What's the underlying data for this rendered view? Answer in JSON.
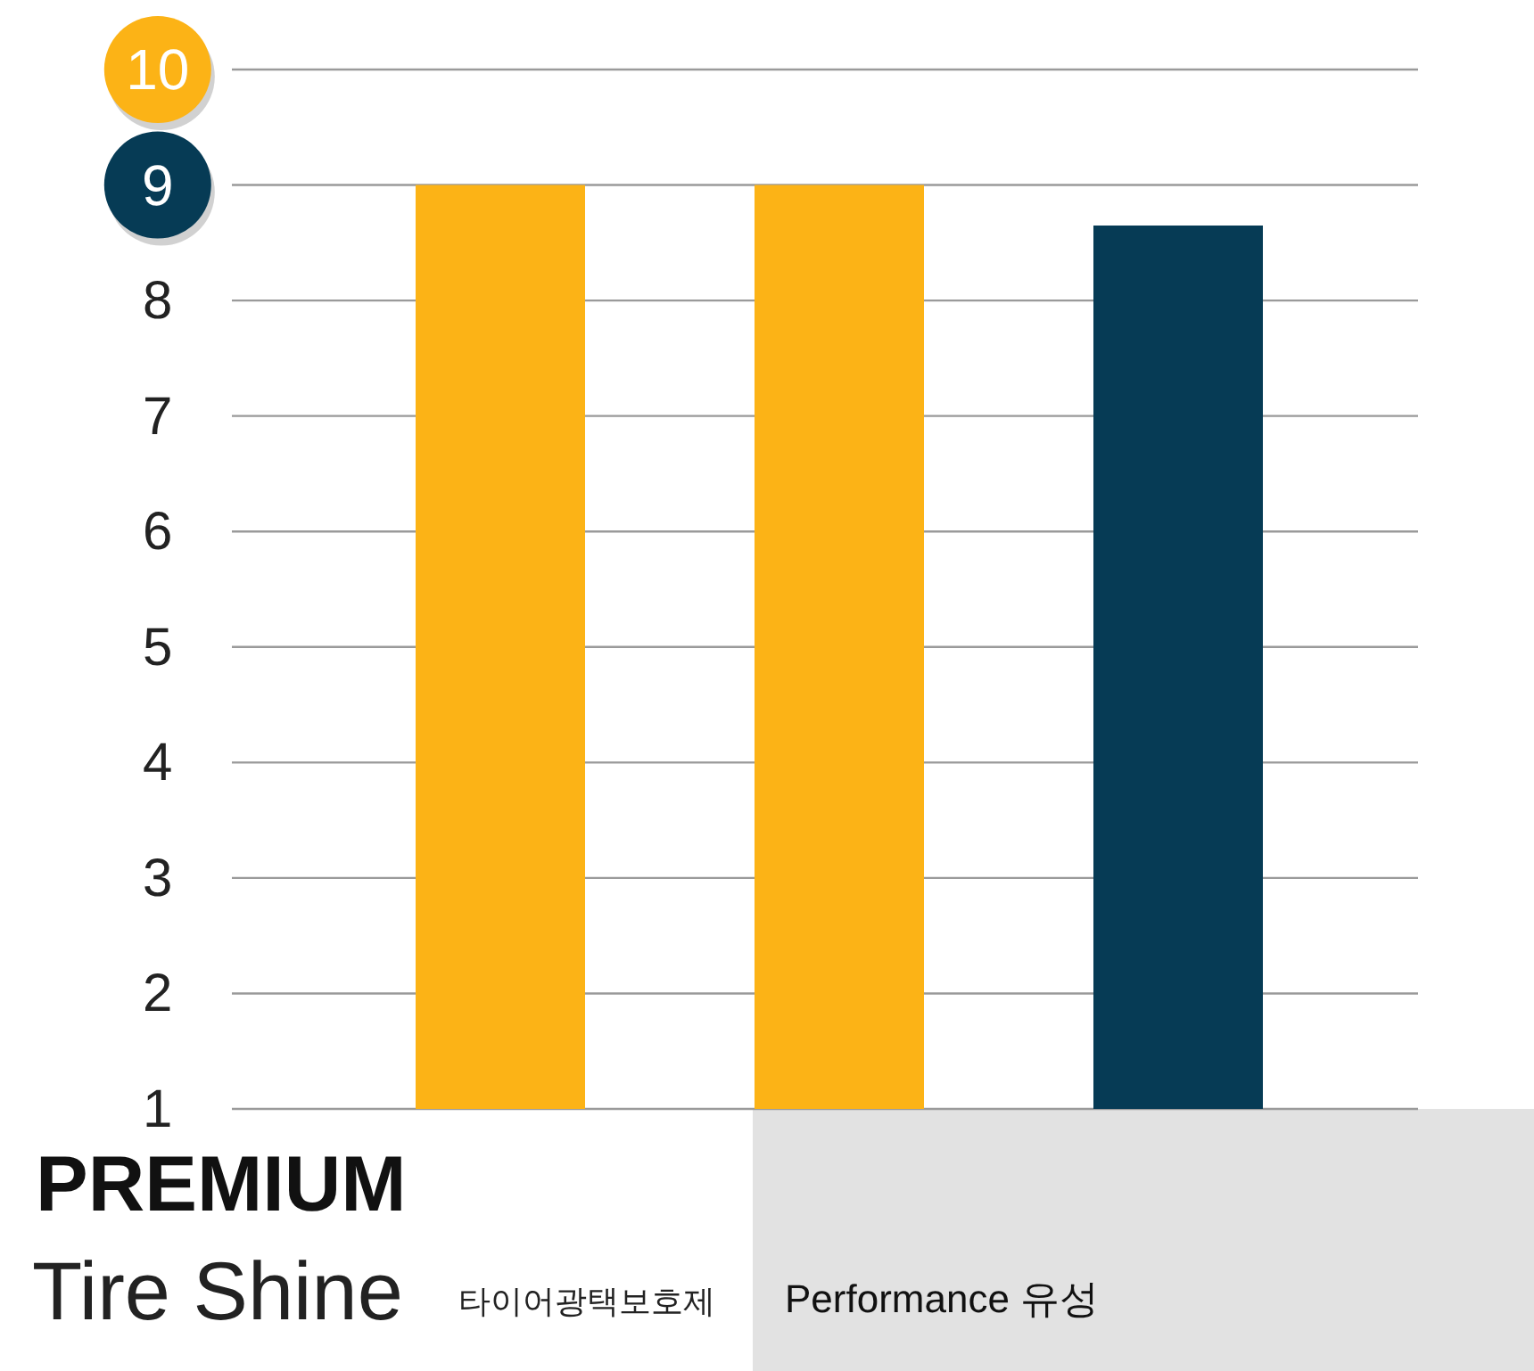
{
  "chart_data": {
    "type": "bar",
    "title": "PREMIUM",
    "subtitle": "Tire Shine",
    "annotations": [
      "타이어광택보호제",
      "Performance 유성"
    ],
    "categories": [
      null,
      null,
      null
    ],
    "values": [
      9,
      9,
      8.65
    ],
    "colors": [
      "#fcb316",
      "#fcb316",
      "#063b55"
    ],
    "ylim": [
      1,
      10
    ],
    "yticks": [
      1,
      2,
      3,
      4,
      5,
      6,
      7,
      8,
      9,
      10
    ],
    "grid": "y",
    "tick_labels": "y"
  }
}
